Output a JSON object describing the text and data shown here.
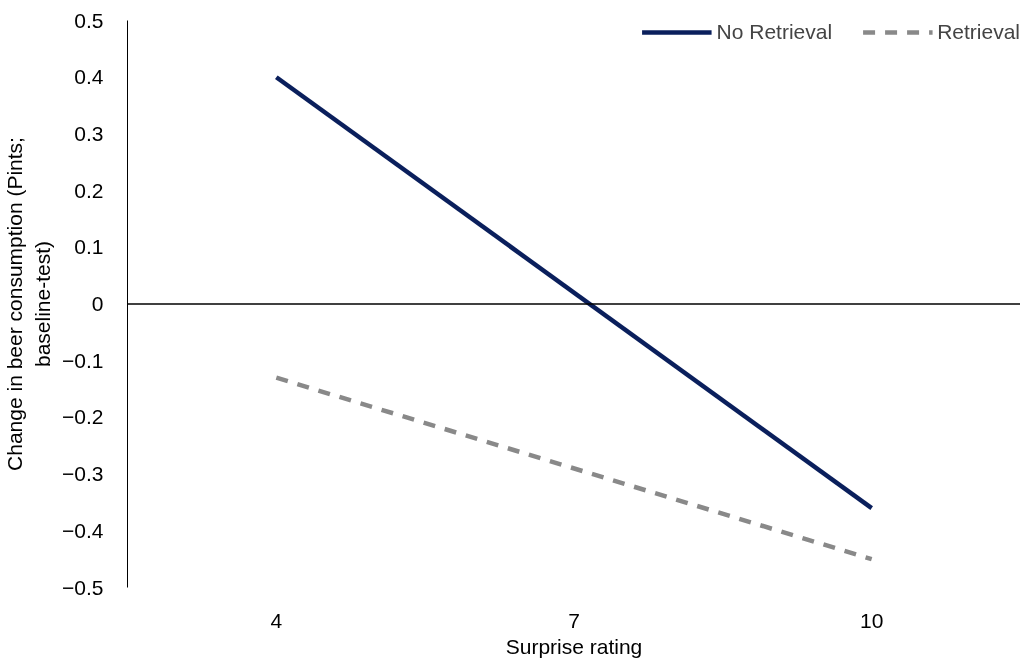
{
  "chart_data": {
    "type": "line",
    "xlabel": "Surprise rating",
    "ylabel": "Change in beer consumption (Pints;\nbaseline-test)",
    "x": [
      4,
      10
    ],
    "xlim": [
      2.5,
      11.5
    ],
    "xticks": [
      4,
      7,
      10
    ],
    "ylim": [
      -0.5,
      0.5
    ],
    "yticks": [
      0.5,
      0.4,
      0.3,
      0.2,
      0.1,
      0,
      -0.1,
      -0.2,
      -0.3,
      -0.4,
      -0.5
    ],
    "series": [
      {
        "name": "No Retrieval",
        "color": "#0a1f5c",
        "values": [
          0.4,
          -0.36
        ],
        "line_style": "solid"
      },
      {
        "name": "Retrieval",
        "color": "#898989",
        "values": [
          -0.13,
          -0.45
        ],
        "line_style": "dashed"
      }
    ],
    "ref_lines": [
      {
        "axis": "y",
        "value": 0,
        "color": "#000000"
      }
    ],
    "legend": "top right",
    "grid": false,
    "marker": "none"
  }
}
